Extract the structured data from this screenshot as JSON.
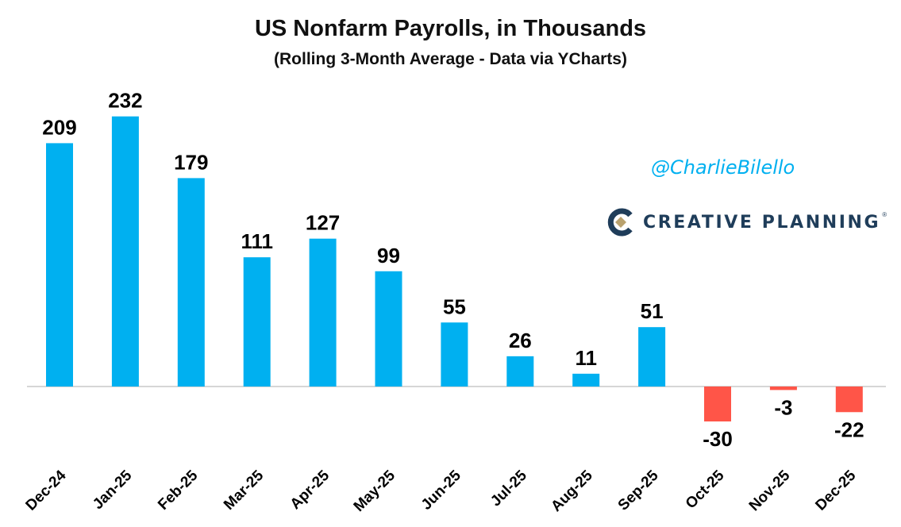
{
  "chart_data": {
    "type": "bar",
    "title": "US Nonfarm Payrolls, in Thousands",
    "subtitle": "(Rolling 3-Month Average - Data via YCharts)",
    "xlabel": "",
    "ylabel": "",
    "categories": [
      "Dec-24",
      "Jan-25",
      "Feb-25",
      "Mar-25",
      "Apr-25",
      "May-25",
      "Jun-25",
      "Jul-25",
      "Aug-25",
      "Sep-25",
      "Oct-25",
      "Nov-25",
      "Dec-25"
    ],
    "values": [
      209,
      232,
      179,
      111,
      127,
      99,
      55,
      26,
      11,
      51,
      -30,
      -3,
      -22
    ],
    "data_labels": [
      "209",
      "232",
      "179",
      "111",
      "127",
      "99",
      "55",
      "26",
      "11",
      "51",
      "-30",
      "-3",
      "-22"
    ],
    "ylim": [
      -70,
      262
    ],
    "grid": false,
    "legend": "none",
    "colors": {
      "positive": "#00b0f0",
      "negative": "#ff5548",
      "axis": "#c8c8c8",
      "text": "#000000"
    }
  },
  "watermark": {
    "handle": "@CharlieBilello",
    "brand": "CREATIVE PLANNING",
    "brand_mark": "creative-planning-logo",
    "registered": "®"
  }
}
